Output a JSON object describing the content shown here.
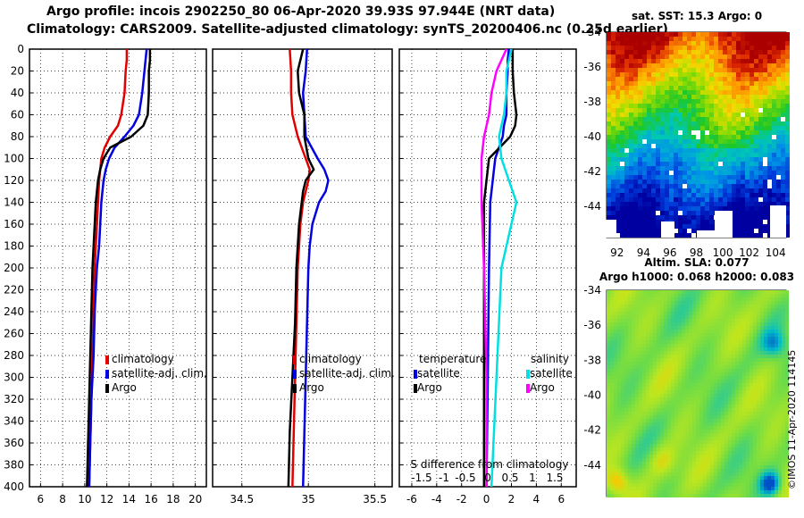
{
  "header": {
    "line1": "Argo profile: incois 2902250_80 06-Apr-2020 39.93S 97.944E (NRT data)",
    "line2": "Climatology: CARS2009. Satellite-adjusted climatology: synTS_20200406.nc (0.25d earlier)"
  },
  "map_sst": {
    "title": "sat. SST: 15.3 Argo: 0"
  },
  "map_sla": {
    "title_line1": "Altim. SLA: 0.077",
    "title_line2": "Argo h1000: 0.068 h2000: 0.083"
  },
  "credit": "©IMOS 11-Apr-2020 114145",
  "colors": {
    "climatology": "#e00000",
    "satellite": "#0000e0",
    "argo": "#000000",
    "sat_salinity": "#00e0e0",
    "argo_salinity": "#ff00ff"
  },
  "chart_data": [
    {
      "type": "line",
      "name": "temperature-profile",
      "xlim": [
        5,
        21
      ],
      "ylim": [
        400,
        0
      ],
      "xticks": [
        6,
        8,
        10,
        12,
        14,
        16,
        18,
        20
      ],
      "yticks": [
        0,
        20,
        40,
        60,
        80,
        100,
        120,
        140,
        160,
        180,
        200,
        220,
        240,
        260,
        280,
        300,
        320,
        340,
        360,
        380,
        400
      ],
      "grid": true,
      "legend": [
        "climatology",
        "satellite-adj. clim.",
        "Argo"
      ],
      "legend_position": "lower-right",
      "depth": [
        0,
        10,
        20,
        40,
        60,
        70,
        80,
        90,
        100,
        110,
        120,
        140,
        160,
        180,
        200,
        240,
        280,
        320,
        360,
        400
      ],
      "series": [
        {
          "name": "climatology",
          "values": [
            13.8,
            13.8,
            13.7,
            13.6,
            13.3,
            13.0,
            12.3,
            11.8,
            11.5,
            11.4,
            11.3,
            11.2,
            11.1,
            11.0,
            10.9,
            10.8,
            10.7,
            10.6,
            10.5,
            10.4
          ]
        },
        {
          "name": "satellite-adj. clim.",
          "values": [
            15.6,
            15.5,
            15.4,
            15.2,
            14.9,
            14.4,
            13.6,
            12.7,
            12.2,
            11.9,
            11.7,
            11.5,
            11.4,
            11.3,
            11.1,
            10.9,
            10.8,
            10.6,
            10.5,
            10.4
          ]
        },
        {
          "name": "Argo",
          "values": [
            15.9,
            15.9,
            15.8,
            15.8,
            15.7,
            15.3,
            14.2,
            12.3,
            11.7,
            11.4,
            11.2,
            11.0,
            10.9,
            10.8,
            10.7,
            10.6,
            10.5,
            10.4,
            10.3,
            10.2
          ]
        }
      ]
    },
    {
      "type": "line",
      "name": "salinity-profile",
      "xlim": [
        34.28,
        35.63
      ],
      "ylim": [
        400,
        0
      ],
      "xticks": [
        34.5,
        35,
        35.5
      ],
      "grid": true,
      "legend": [
        "climatology",
        "satellite-adj. clim.",
        "Argo"
      ],
      "legend_position": "lower-right",
      "depth": [
        0,
        20,
        40,
        60,
        80,
        100,
        110,
        120,
        130,
        140,
        160,
        180,
        200,
        250,
        300,
        350,
        400
      ],
      "series": [
        {
          "name": "climatology",
          "values": [
            34.86,
            34.87,
            34.87,
            34.88,
            34.92,
            34.98,
            35.01,
            35.0,
            34.98,
            34.96,
            34.94,
            34.93,
            34.92,
            34.91,
            34.9,
            34.89,
            34.88
          ]
        },
        {
          "name": "satellite-adj. clim.",
          "values": [
            34.99,
            34.98,
            34.96,
            34.97,
            34.98,
            35.07,
            35.12,
            35.15,
            35.13,
            35.08,
            35.03,
            35.01,
            35.0,
            34.99,
            34.98,
            34.97,
            34.96
          ]
        },
        {
          "name": "Argo",
          "values": [
            34.96,
            34.92,
            34.93,
            34.97,
            34.97,
            35.0,
            35.04,
            34.98,
            34.96,
            34.95,
            34.93,
            34.92,
            34.91,
            34.9,
            34.88,
            34.86,
            34.85
          ]
        }
      ]
    },
    {
      "type": "line",
      "name": "difference-profile",
      "xlim": [
        -7,
        7.2
      ],
      "ylim": [
        400,
        0
      ],
      "xticks": [
        -6,
        -4,
        -2,
        0,
        2,
        4,
        6
      ],
      "secondary_xticks": [
        "-1.5",
        "-1",
        "-0.5",
        "0",
        "0.5",
        "1",
        "1.5"
      ],
      "secondary_xlabel": "S difference from climatology",
      "grid": true,
      "legend_titles": [
        "temperature",
        "salinity"
      ],
      "legend": [
        "satellite",
        "Argo",
        "satellite",
        "Argo"
      ],
      "depth": [
        0,
        10,
        20,
        40,
        60,
        70,
        80,
        100,
        140,
        200,
        300,
        400
      ],
      "series": [
        {
          "name": "T satellite",
          "values": [
            1.8,
            1.7,
            1.7,
            1.6,
            1.6,
            1.4,
            1.3,
            0.7,
            0.3,
            0.2,
            0.1,
            0.0
          ]
        },
        {
          "name": "T Argo",
          "values": [
            2.1,
            2.1,
            2.1,
            2.2,
            2.4,
            2.3,
            1.9,
            0.2,
            -0.2,
            -0.2,
            -0.2,
            -0.2
          ]
        },
        {
          "name": "S satellite",
          "values": [
            0.5,
            0.45,
            0.4,
            0.4,
            0.35,
            0.3,
            0.25,
            0.3,
            0.6,
            0.3,
            0.2,
            0.1
          ]
        },
        {
          "name": "S Argo",
          "values": [
            0.4,
            0.3,
            0.2,
            0.1,
            0.05,
            0.0,
            -0.05,
            -0.1,
            -0.1,
            -0.05,
            0.0,
            0.0
          ]
        }
      ]
    },
    {
      "type": "heatmap",
      "name": "sst-map",
      "title": "sat. SST: 15.3 Argo: 0",
      "xlim": [
        91.2,
        104.8
      ],
      "ylim": [
        -45.8,
        -34
      ],
      "xticks": [
        92,
        94,
        96,
        98,
        100,
        102,
        104
      ],
      "yticks": [
        -34,
        -36,
        -38,
        -40,
        -42,
        -44
      ]
    },
    {
      "type": "heatmap",
      "name": "sla-map",
      "title": "Altim. SLA: 0.077 / Argo h1000: 0.068 h2000: 0.083",
      "ylim": [
        -45.8,
        -34
      ],
      "yticks": [
        -34,
        -36,
        -38,
        -40,
        -42,
        -44
      ]
    }
  ]
}
